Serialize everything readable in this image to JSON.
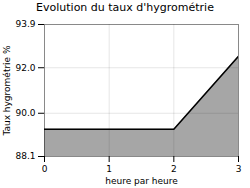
{
  "chart_data": {
    "type": "area",
    "title": "Evolution du taux d'hygrométrie",
    "xlabel": "heure par heure",
    "ylabel": "Taux hygrométrie %",
    "x": [
      0,
      2,
      3
    ],
    "values": [
      89.3,
      89.3,
      92.5
    ],
    "xlim": [
      0,
      3
    ],
    "ylim": [
      88.1,
      93.9
    ],
    "xticks": [
      0,
      1,
      2,
      3
    ],
    "yticks": [
      88.1,
      {
        "value": 90,
        "label": "90.0"
      },
      {
        "value": 92,
        "label": "92.0"
      },
      93.9
    ],
    "grid": true
  }
}
